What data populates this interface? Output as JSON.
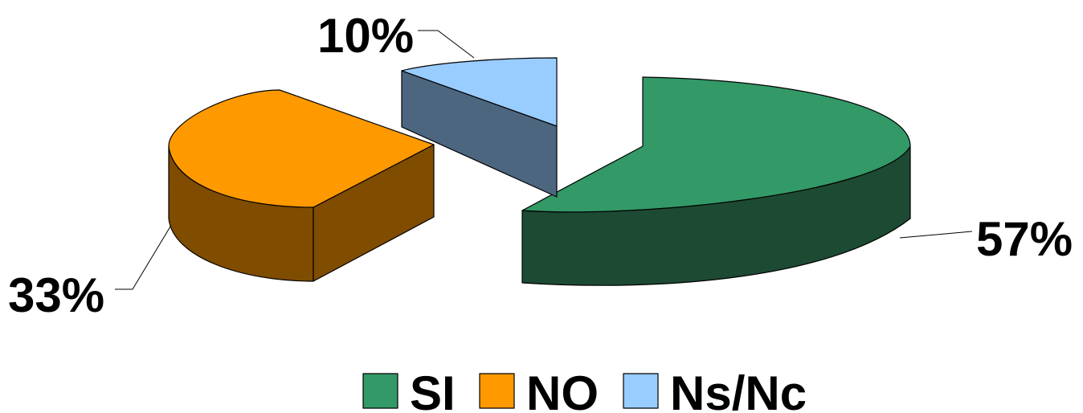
{
  "chart_data": {
    "type": "pie",
    "style": "3d-exploded",
    "title": "",
    "legend_position": "bottom",
    "series": [
      {
        "name": "",
        "slices": [
          {
            "label": "SI",
            "value": 57,
            "display": "57%",
            "top_color": "#339966",
            "side_color": "#1d4a33"
          },
          {
            "label": "NO",
            "value": 33,
            "display": "33%",
            "top_color": "#ff9900",
            "side_color": "#7f4c00"
          },
          {
            "label": "Ns/Nc",
            "value": 10,
            "display": "10%",
            "top_color": "#99ccff",
            "side_color": "#4d6680"
          }
        ]
      }
    ]
  }
}
